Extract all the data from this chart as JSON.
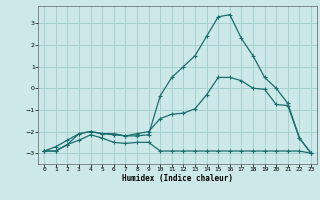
{
  "xlabel": "Humidex (Indice chaleur)",
  "xlim": [
    -0.5,
    23.5
  ],
  "ylim": [
    -3.5,
    3.8
  ],
  "yticks": [
    -3,
    -2,
    -1,
    0,
    1,
    2,
    3
  ],
  "xticks": [
    0,
    1,
    2,
    3,
    4,
    5,
    6,
    7,
    8,
    9,
    10,
    11,
    12,
    13,
    14,
    15,
    16,
    17,
    18,
    19,
    20,
    21,
    22,
    23
  ],
  "bg_color": "#cce8e8",
  "grid_color": "#a8d0d0",
  "line_color": "#1a6e6e",
  "line1_x": [
    0,
    1,
    2,
    3,
    4,
    5,
    6,
    7,
    8,
    9,
    10,
    11,
    12,
    13,
    14,
    15,
    16,
    17,
    18,
    19,
    20,
    21,
    22,
    23
  ],
  "line1_y": [
    -2.9,
    -2.9,
    -2.6,
    -2.4,
    -2.15,
    -2.3,
    -2.5,
    -2.55,
    -2.5,
    -2.5,
    -2.9,
    -2.9,
    -2.9,
    -2.9,
    -2.9,
    -2.9,
    -2.9,
    -2.9,
    -2.9,
    -2.9,
    -2.9,
    -2.9,
    -2.9,
    -3.0
  ],
  "line2_x": [
    0,
    1,
    2,
    3,
    4,
    5,
    6,
    7,
    8,
    9,
    10,
    11,
    12,
    13,
    14,
    15,
    16,
    17,
    18,
    19,
    20,
    21,
    22,
    23
  ],
  "line2_y": [
    -2.9,
    -2.7,
    -2.4,
    -2.1,
    -2.0,
    -2.1,
    -2.1,
    -2.2,
    -2.1,
    -2.0,
    -1.4,
    -1.2,
    -1.15,
    -0.95,
    -0.3,
    0.5,
    0.5,
    0.35,
    0.0,
    -0.05,
    -0.75,
    -0.8,
    -2.3,
    -3.0
  ],
  "line3_x": [
    0,
    1,
    2,
    3,
    4,
    5,
    6,
    7,
    8,
    9,
    10,
    11,
    12,
    13,
    14,
    15,
    16,
    17,
    18,
    19,
    20,
    21,
    22,
    23
  ],
  "line3_y": [
    -2.9,
    -2.9,
    -2.6,
    -2.1,
    -2.0,
    -2.1,
    -2.15,
    -2.2,
    -2.2,
    -2.15,
    -0.35,
    0.5,
    1.0,
    1.5,
    2.4,
    3.3,
    3.4,
    2.3,
    1.5,
    0.5,
    0.0,
    -0.7,
    -2.3,
    -3.0
  ],
  "marker": "+",
  "markersize": 2.5,
  "linewidth": 0.9
}
